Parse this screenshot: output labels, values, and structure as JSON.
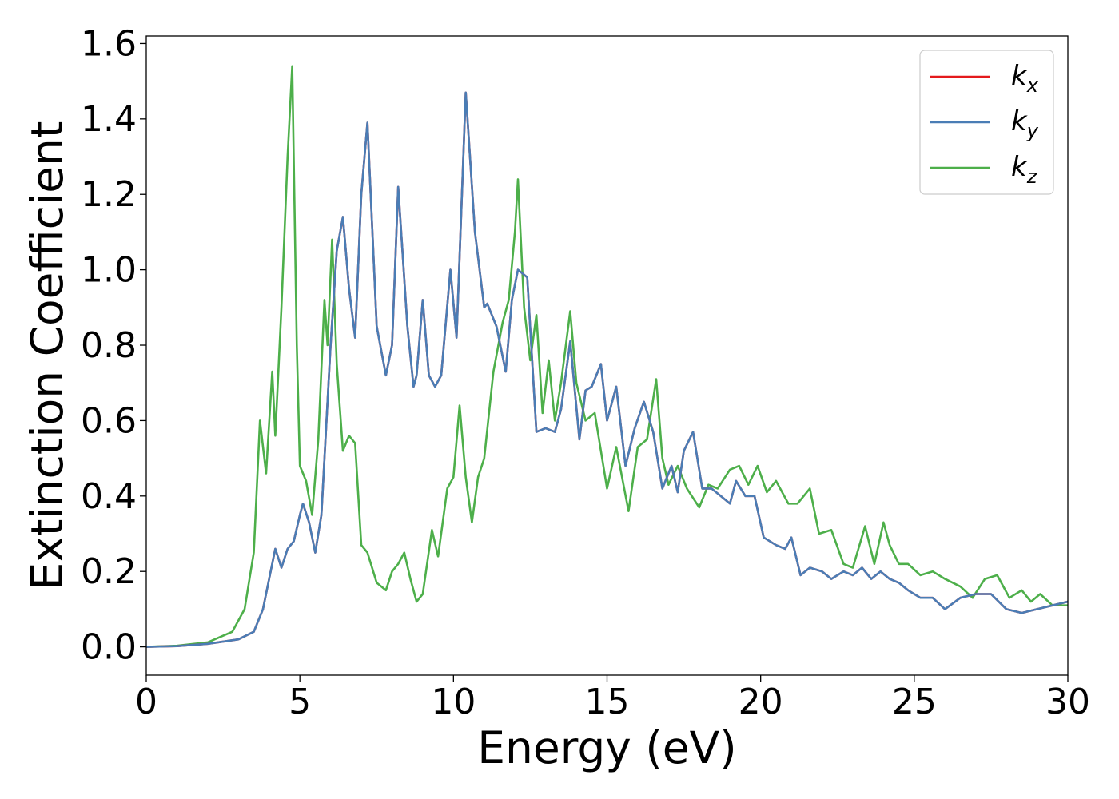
{
  "chart_data": {
    "type": "line",
    "title": "",
    "xlabel": "Energy (eV)",
    "ylabel": "Extinction Coefficient",
    "xlim": [
      0,
      30
    ],
    "ylim": [
      -0.075,
      1.62
    ],
    "xticks": [
      0,
      5,
      10,
      15,
      20,
      25,
      30
    ],
    "xtick_labels": [
      "0",
      "5",
      "10",
      "15",
      "20",
      "25",
      "30"
    ],
    "yticks": [
      0.0,
      0.2,
      0.4,
      0.6,
      0.8,
      1.0,
      1.2,
      1.4,
      1.6
    ],
    "ytick_labels": [
      "0.0",
      "0.2",
      "0.4",
      "0.6",
      "0.8",
      "1.0",
      "1.2",
      "1.4",
      "1.6"
    ],
    "grid": false,
    "legend_position": "top-right",
    "series": [
      {
        "name": "kx",
        "label_base": "k",
        "label_sub": "x",
        "color": "#e41a1c",
        "x": [
          0,
          1,
          2,
          3,
          3.5,
          3.8,
          4.0,
          4.2,
          4.4,
          4.6,
          4.8,
          5.0,
          5.1,
          5.3,
          5.5,
          5.7,
          6.0,
          6.2,
          6.4,
          6.6,
          6.8,
          7.0,
          7.2,
          7.5,
          7.8,
          8.0,
          8.2,
          8.5,
          8.7,
          8.8,
          9.0,
          9.2,
          9.4,
          9.6,
          9.9,
          10.1,
          10.4,
          10.7,
          11.0,
          11.1,
          11.4,
          11.7,
          11.9,
          12.1,
          12.4,
          12.7,
          13.0,
          13.3,
          13.5,
          13.8,
          14.1,
          14.3,
          14.5,
          14.8,
          15.0,
          15.3,
          15.6,
          15.9,
          16.2,
          16.5,
          16.8,
          17.1,
          17.3,
          17.5,
          17.8,
          18.1,
          18.4,
          18.7,
          19.0,
          19.2,
          19.5,
          19.8,
          20.1,
          20.5,
          20.8,
          21.0,
          21.3,
          21.6,
          22.0,
          22.3,
          22.7,
          23.0,
          23.3,
          23.6,
          23.9,
          24.2,
          24.5,
          24.8,
          25.2,
          25.6,
          26.0,
          26.5,
          27.0,
          27.5,
          28.0,
          28.5,
          29.0,
          29.5,
          30.0
        ],
        "y": [
          0.0,
          0.002,
          0.008,
          0.02,
          0.04,
          0.1,
          0.18,
          0.26,
          0.21,
          0.26,
          0.28,
          0.35,
          0.38,
          0.33,
          0.25,
          0.35,
          0.8,
          1.05,
          1.14,
          0.95,
          0.82,
          1.2,
          1.39,
          0.85,
          0.72,
          0.8,
          1.22,
          0.85,
          0.69,
          0.72,
          0.92,
          0.72,
          0.69,
          0.72,
          1.0,
          0.82,
          1.47,
          1.1,
          0.9,
          0.91,
          0.85,
          0.73,
          0.92,
          1.0,
          0.98,
          0.57,
          0.58,
          0.57,
          0.63,
          0.81,
          0.55,
          0.68,
          0.69,
          0.75,
          0.6,
          0.69,
          0.48,
          0.58,
          0.65,
          0.57,
          0.42,
          0.48,
          0.41,
          0.52,
          0.57,
          0.42,
          0.42,
          0.4,
          0.38,
          0.44,
          0.4,
          0.4,
          0.29,
          0.27,
          0.26,
          0.29,
          0.19,
          0.21,
          0.2,
          0.18,
          0.2,
          0.19,
          0.21,
          0.18,
          0.2,
          0.18,
          0.17,
          0.15,
          0.13,
          0.13,
          0.1,
          0.13,
          0.14,
          0.14,
          0.1,
          0.09,
          0.1,
          0.11,
          0.12
        ]
      },
      {
        "name": "ky",
        "label_base": "k",
        "label_sub": "y",
        "color": "#4a7db5",
        "x": [
          0,
          1,
          2,
          3,
          3.5,
          3.8,
          4.0,
          4.2,
          4.4,
          4.6,
          4.8,
          5.0,
          5.1,
          5.3,
          5.5,
          5.7,
          6.0,
          6.2,
          6.4,
          6.6,
          6.8,
          7.0,
          7.2,
          7.5,
          7.8,
          8.0,
          8.2,
          8.5,
          8.7,
          8.8,
          9.0,
          9.2,
          9.4,
          9.6,
          9.9,
          10.1,
          10.4,
          10.7,
          11.0,
          11.1,
          11.4,
          11.7,
          11.9,
          12.1,
          12.4,
          12.7,
          13.0,
          13.3,
          13.5,
          13.8,
          14.1,
          14.3,
          14.5,
          14.8,
          15.0,
          15.3,
          15.6,
          15.9,
          16.2,
          16.5,
          16.8,
          17.1,
          17.3,
          17.5,
          17.8,
          18.1,
          18.4,
          18.7,
          19.0,
          19.2,
          19.5,
          19.8,
          20.1,
          20.5,
          20.8,
          21.0,
          21.3,
          21.6,
          22.0,
          22.3,
          22.7,
          23.0,
          23.3,
          23.6,
          23.9,
          24.2,
          24.5,
          24.8,
          25.2,
          25.6,
          26.0,
          26.5,
          27.0,
          27.5,
          28.0,
          28.5,
          29.0,
          29.5,
          30.0
        ],
        "y": [
          0.0,
          0.002,
          0.008,
          0.02,
          0.04,
          0.1,
          0.18,
          0.26,
          0.21,
          0.26,
          0.28,
          0.35,
          0.38,
          0.33,
          0.25,
          0.35,
          0.8,
          1.05,
          1.14,
          0.95,
          0.82,
          1.2,
          1.39,
          0.85,
          0.72,
          0.8,
          1.22,
          0.85,
          0.69,
          0.72,
          0.92,
          0.72,
          0.69,
          0.72,
          1.0,
          0.82,
          1.47,
          1.1,
          0.9,
          0.91,
          0.85,
          0.73,
          0.92,
          1.0,
          0.98,
          0.57,
          0.58,
          0.57,
          0.63,
          0.81,
          0.55,
          0.68,
          0.69,
          0.75,
          0.6,
          0.69,
          0.48,
          0.58,
          0.65,
          0.57,
          0.42,
          0.48,
          0.41,
          0.52,
          0.57,
          0.42,
          0.42,
          0.4,
          0.38,
          0.44,
          0.4,
          0.4,
          0.29,
          0.27,
          0.26,
          0.29,
          0.19,
          0.21,
          0.2,
          0.18,
          0.2,
          0.19,
          0.21,
          0.18,
          0.2,
          0.18,
          0.17,
          0.15,
          0.13,
          0.13,
          0.1,
          0.13,
          0.14,
          0.14,
          0.1,
          0.09,
          0.1,
          0.11,
          0.12
        ]
      },
      {
        "name": "kz",
        "label_base": "k",
        "label_sub": "z",
        "color": "#4daf4a",
        "x": [
          0,
          1,
          2,
          2.8,
          3.2,
          3.5,
          3.7,
          3.9,
          4.1,
          4.2,
          4.4,
          4.6,
          4.75,
          4.9,
          5.0,
          5.2,
          5.4,
          5.6,
          5.8,
          5.9,
          6.05,
          6.2,
          6.4,
          6.6,
          6.8,
          7.0,
          7.2,
          7.5,
          7.8,
          8.0,
          8.2,
          8.4,
          8.6,
          8.8,
          9.0,
          9.3,
          9.5,
          9.8,
          10.0,
          10.2,
          10.4,
          10.6,
          10.8,
          11.0,
          11.3,
          11.6,
          11.8,
          12.0,
          12.1,
          12.3,
          12.5,
          12.7,
          12.9,
          13.1,
          13.3,
          13.5,
          13.8,
          14.0,
          14.3,
          14.6,
          15.0,
          15.3,
          15.7,
          16.0,
          16.3,
          16.6,
          16.8,
          17.0,
          17.3,
          17.6,
          18.0,
          18.3,
          18.6,
          19.0,
          19.3,
          19.6,
          19.9,
          20.2,
          20.5,
          20.9,
          21.2,
          21.6,
          21.9,
          22.3,
          22.7,
          23.0,
          23.4,
          23.7,
          24.0,
          24.2,
          24.5,
          24.8,
          25.2,
          25.6,
          26.0,
          26.5,
          26.9,
          27.3,
          27.7,
          28.1,
          28.5,
          28.8,
          29.1,
          29.5,
          30.0
        ],
        "y": [
          0.0,
          0.003,
          0.012,
          0.04,
          0.1,
          0.25,
          0.6,
          0.46,
          0.73,
          0.56,
          0.9,
          1.3,
          1.54,
          0.8,
          0.48,
          0.44,
          0.35,
          0.55,
          0.92,
          0.8,
          1.08,
          0.75,
          0.52,
          0.56,
          0.54,
          0.27,
          0.25,
          0.17,
          0.15,
          0.2,
          0.22,
          0.25,
          0.18,
          0.12,
          0.14,
          0.31,
          0.24,
          0.42,
          0.45,
          0.64,
          0.45,
          0.33,
          0.45,
          0.5,
          0.73,
          0.86,
          0.92,
          1.1,
          1.24,
          0.9,
          0.76,
          0.88,
          0.62,
          0.76,
          0.6,
          0.7,
          0.89,
          0.7,
          0.6,
          0.62,
          0.42,
          0.53,
          0.36,
          0.53,
          0.55,
          0.71,
          0.5,
          0.43,
          0.48,
          0.42,
          0.37,
          0.43,
          0.42,
          0.47,
          0.48,
          0.43,
          0.48,
          0.41,
          0.44,
          0.38,
          0.38,
          0.42,
          0.3,
          0.31,
          0.22,
          0.21,
          0.32,
          0.22,
          0.33,
          0.27,
          0.22,
          0.22,
          0.19,
          0.2,
          0.18,
          0.16,
          0.13,
          0.18,
          0.19,
          0.13,
          0.15,
          0.12,
          0.14,
          0.11,
          0.11
        ]
      }
    ]
  }
}
